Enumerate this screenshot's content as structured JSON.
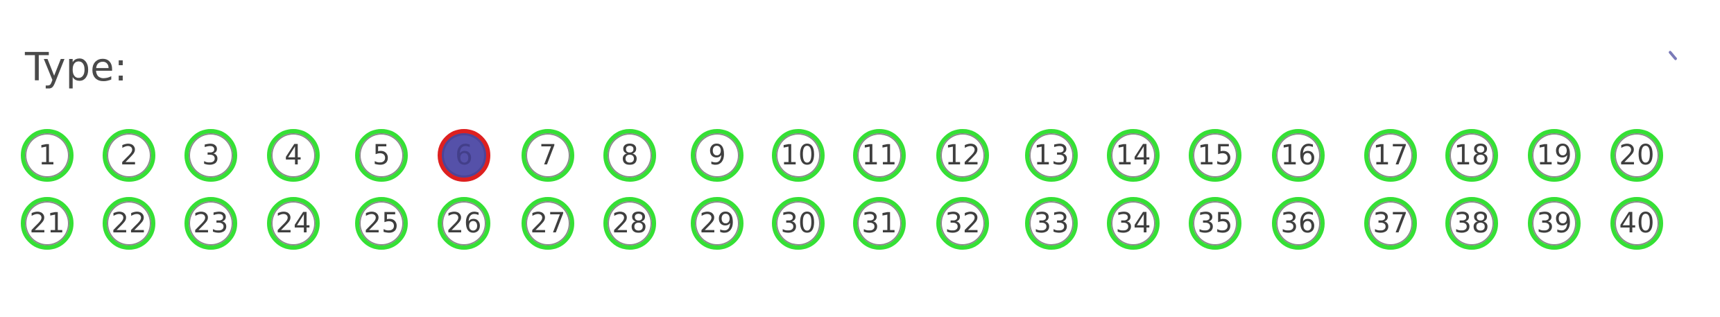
{
  "form": {
    "label": "Type:"
  },
  "options": [
    {
      "label": "1",
      "selected": false
    },
    {
      "label": "2",
      "selected": false
    },
    {
      "label": "3",
      "selected": false
    },
    {
      "label": "4",
      "selected": false
    },
    {
      "label": "5",
      "selected": false
    },
    {
      "label": "6",
      "selected": true
    },
    {
      "label": "7",
      "selected": false
    },
    {
      "label": "8",
      "selected": false
    },
    {
      "label": "9",
      "selected": false
    },
    {
      "label": "10",
      "selected": false
    },
    {
      "label": "11",
      "selected": false
    },
    {
      "label": "12",
      "selected": false
    },
    {
      "label": "13",
      "selected": false
    },
    {
      "label": "14",
      "selected": false
    },
    {
      "label": "15",
      "selected": false
    },
    {
      "label": "16",
      "selected": false
    },
    {
      "label": "17",
      "selected": false
    },
    {
      "label": "18",
      "selected": false
    },
    {
      "label": "19",
      "selected": false
    },
    {
      "label": "20",
      "selected": false
    },
    {
      "label": "21",
      "selected": false
    },
    {
      "label": "22",
      "selected": false
    },
    {
      "label": "23",
      "selected": false
    },
    {
      "label": "24",
      "selected": false
    },
    {
      "label": "25",
      "selected": false
    },
    {
      "label": "26",
      "selected": false
    },
    {
      "label": "27",
      "selected": false
    },
    {
      "label": "28",
      "selected": false
    },
    {
      "label": "29",
      "selected": false
    },
    {
      "label": "30",
      "selected": false
    },
    {
      "label": "31",
      "selected": false
    },
    {
      "label": "32",
      "selected": false
    },
    {
      "label": "33",
      "selected": false
    },
    {
      "label": "34",
      "selected": false
    },
    {
      "label": "35",
      "selected": false
    },
    {
      "label": "36",
      "selected": false
    },
    {
      "label": "37",
      "selected": false
    },
    {
      "label": "38",
      "selected": false
    },
    {
      "label": "39",
      "selected": false
    },
    {
      "label": "40",
      "selected": false
    }
  ],
  "colors": {
    "ring": "#35e035",
    "selected_ring": "#dd2020",
    "selected_fill": "#5551a9",
    "text": "#3f3f3f"
  }
}
